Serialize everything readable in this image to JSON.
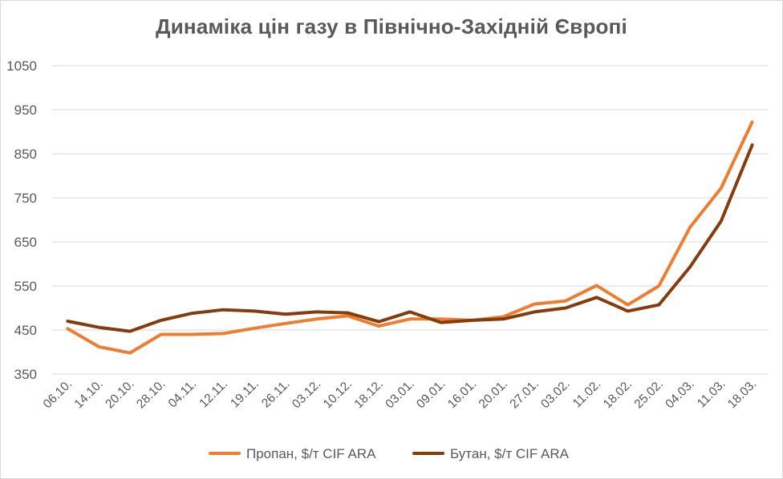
{
  "chart_data": {
    "type": "line",
    "title": "Динаміка цін газу в Північно-Західній Європі",
    "xlabel": "",
    "ylabel": "",
    "categories": [
      "06.10.",
      "14.10.",
      "20.10.",
      "28.10.",
      "04.11.",
      "12.11.",
      "19.11.",
      "26.11.",
      "03.12.",
      "10.12.",
      "18.12.",
      "03.01.",
      "09.01.",
      "16.01.",
      "20.01.",
      "27.01.",
      "03.02.",
      "11.02.",
      "18.02.",
      "25.02.",
      "04.03.",
      "11.03.",
      "18.03."
    ],
    "series": [
      {
        "name": "Пропан, $/т CIF ARA",
        "color": "#ed7d31",
        "values": [
          453,
          412,
          398,
          440,
          440,
          442,
          454,
          465,
          475,
          482,
          459,
          475,
          475,
          472,
          480,
          509,
          516,
          551,
          507,
          550,
          683,
          772,
          922
        ]
      },
      {
        "name": "Бутан, $/т CIF ARA",
        "color": "#843c0c",
        "values": [
          470,
          456,
          447,
          472,
          488,
          496,
          493,
          486,
          491,
          489,
          469,
          491,
          467,
          472,
          475,
          491,
          500,
          524,
          493,
          507,
          593,
          697,
          870
        ]
      }
    ],
    "y_ticks": [
      "350",
      "450",
      "550",
      "650",
      "750",
      "850",
      "950",
      "1050"
    ],
    "ylim": [
      350,
      1050
    ],
    "grid": true,
    "legend_position": "bottom"
  }
}
